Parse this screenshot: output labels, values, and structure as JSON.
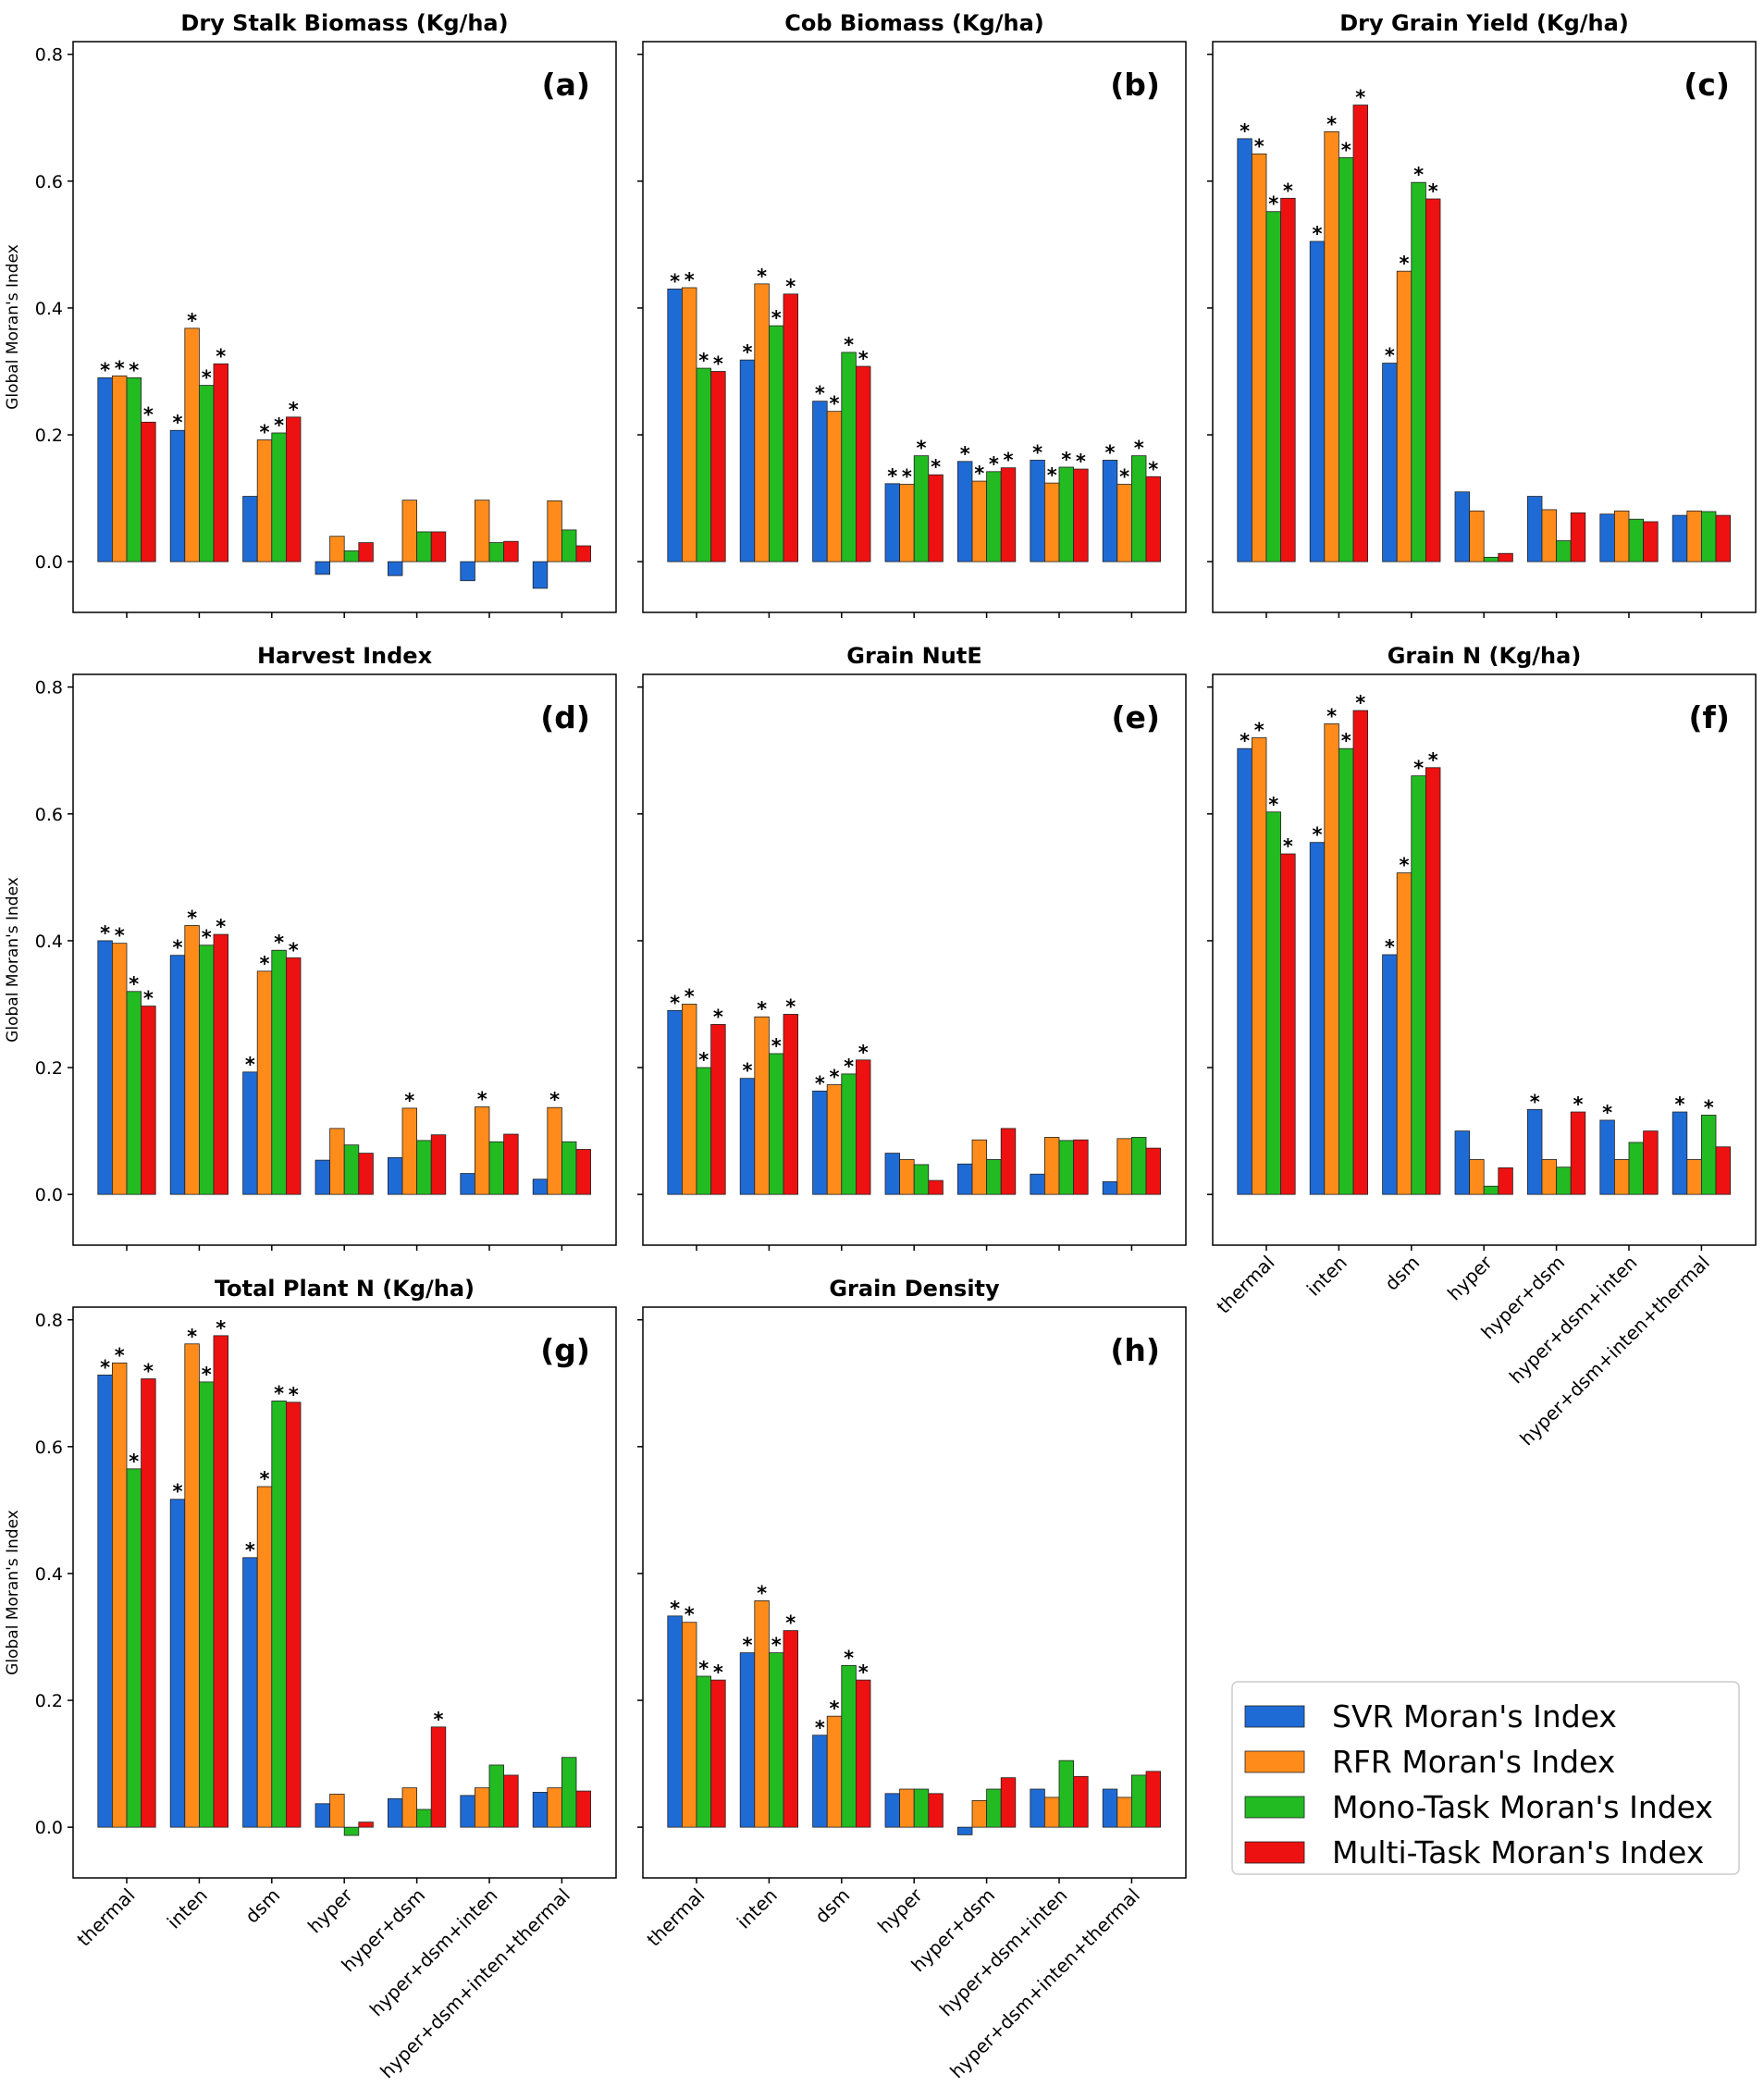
{
  "colors": {
    "SVR": "#1f6bd6",
    "RFR": "#ff8c1a",
    "Mono": "#22bb22",
    "Multi": "#ee1111"
  },
  "legend": [
    {
      "key": "SVR",
      "label": "SVR Moran's Index"
    },
    {
      "key": "RFR",
      "label": "RFR Moran's Index"
    },
    {
      "key": "Mono",
      "label": "Mono-Task Moran's Index"
    },
    {
      "key": "Multi",
      "label": "Multi-Task Moran's Index"
    }
  ],
  "chart_data": [
    {
      "type": "bar",
      "panel": "(a)",
      "title": "Dry Stalk Biomass (Kg/ha)",
      "ylabel": "Global Moran's Index",
      "ylim": [
        -0.08,
        0.82
      ],
      "yticks": [
        "0.0",
        "0.2",
        "0.4",
        "0.6",
        "0.8"
      ],
      "categories": [
        "thermal",
        "inten",
        "dsm",
        "hyper",
        "hyper+dsm",
        "hyper+dsm+inten",
        "hyper+dsm+inten+thermal"
      ],
      "series": [
        {
          "key": "SVR",
          "values": [
            0.29,
            0.207,
            0.103,
            -0.02,
            -0.022,
            -0.03,
            -0.042
          ],
          "sig": [
            1,
            1,
            0,
            0,
            0,
            0,
            0
          ]
        },
        {
          "key": "RFR",
          "values": [
            0.293,
            0.368,
            0.192,
            0.04,
            0.097,
            0.097,
            0.096
          ],
          "sig": [
            1,
            1,
            1,
            0,
            0,
            0,
            0
          ]
        },
        {
          "key": "Mono",
          "values": [
            0.29,
            0.278,
            0.203,
            0.017,
            0.047,
            0.03,
            0.05
          ],
          "sig": [
            1,
            1,
            1,
            0,
            0,
            0,
            0
          ]
        },
        {
          "key": "Multi",
          "values": [
            0.22,
            0.312,
            0.228,
            0.03,
            0.047,
            0.032,
            0.025
          ],
          "sig": [
            1,
            1,
            1,
            0,
            0,
            0,
            0
          ]
        }
      ]
    },
    {
      "type": "bar",
      "panel": "(b)",
      "title": "Cob Biomass (Kg/ha)",
      "ylabel": "",
      "ylim": [
        -0.08,
        0.82
      ],
      "yticks": [],
      "categories": [
        "thermal",
        "inten",
        "dsm",
        "hyper",
        "hyper+dsm",
        "hyper+dsm+inten",
        "hyper+dsm+inten+thermal"
      ],
      "series": [
        {
          "key": "SVR",
          "values": [
            0.43,
            0.318,
            0.253,
            0.123,
            0.158,
            0.16,
            0.16
          ],
          "sig": [
            1,
            1,
            1,
            1,
            1,
            1,
            1
          ]
        },
        {
          "key": "RFR",
          "values": [
            0.432,
            0.438,
            0.237,
            0.122,
            0.127,
            0.124,
            0.122
          ],
          "sig": [
            1,
            1,
            1,
            1,
            1,
            1,
            1
          ]
        },
        {
          "key": "Mono",
          "values": [
            0.305,
            0.372,
            0.33,
            0.167,
            0.142,
            0.149,
            0.167
          ],
          "sig": [
            1,
            1,
            1,
            1,
            1,
            1,
            1
          ]
        },
        {
          "key": "Multi",
          "values": [
            0.3,
            0.422,
            0.308,
            0.137,
            0.148,
            0.146,
            0.134
          ],
          "sig": [
            1,
            1,
            1,
            1,
            1,
            1,
            1
          ]
        }
      ]
    },
    {
      "type": "bar",
      "panel": "(c)",
      "title": "Dry Grain Yield (Kg/ha)",
      "ylabel": "",
      "ylim": [
        -0.08,
        0.82
      ],
      "yticks": [],
      "categories": [
        "thermal",
        "inten",
        "dsm",
        "hyper",
        "hyper+dsm",
        "hyper+dsm+inten",
        "hyper+dsm+inten+thermal"
      ],
      "series": [
        {
          "key": "SVR",
          "values": [
            0.667,
            0.505,
            0.313,
            0.11,
            0.103,
            0.075,
            0.073
          ],
          "sig": [
            1,
            1,
            1,
            0,
            0,
            0,
            0
          ]
        },
        {
          "key": "RFR",
          "values": [
            0.643,
            0.678,
            0.458,
            0.08,
            0.082,
            0.08,
            0.08
          ],
          "sig": [
            1,
            1,
            1,
            0,
            0,
            0,
            0
          ]
        },
        {
          "key": "Mono",
          "values": [
            0.552,
            0.637,
            0.598,
            0.007,
            0.033,
            0.067,
            0.079
          ],
          "sig": [
            1,
            1,
            1,
            0,
            0,
            0,
            0
          ]
        },
        {
          "key": "Multi",
          "values": [
            0.573,
            0.72,
            0.572,
            0.013,
            0.077,
            0.063,
            0.073
          ],
          "sig": [
            1,
            1,
            1,
            0,
            0,
            0,
            0
          ]
        }
      ]
    },
    {
      "type": "bar",
      "panel": "(d)",
      "title": "Harvest Index",
      "ylabel": "Global Moran's Index",
      "ylim": [
        -0.08,
        0.82
      ],
      "yticks": [
        "0.0",
        "0.2",
        "0.4",
        "0.6",
        "0.8"
      ],
      "categories": [
        "thermal",
        "inten",
        "dsm",
        "hyper",
        "hyper+dsm",
        "hyper+dsm+inten",
        "hyper+dsm+inten+thermal"
      ],
      "series": [
        {
          "key": "SVR",
          "values": [
            0.4,
            0.377,
            0.193,
            0.054,
            0.058,
            0.033,
            0.024
          ],
          "sig": [
            1,
            1,
            1,
            0,
            0,
            0,
            0
          ]
        },
        {
          "key": "RFR",
          "values": [
            0.396,
            0.424,
            0.352,
            0.104,
            0.136,
            0.138,
            0.137
          ],
          "sig": [
            1,
            1,
            1,
            0,
            1,
            1,
            1
          ]
        },
        {
          "key": "Mono",
          "values": [
            0.32,
            0.393,
            0.385,
            0.078,
            0.085,
            0.083,
            0.083
          ],
          "sig": [
            1,
            1,
            1,
            0,
            0,
            0,
            0
          ]
        },
        {
          "key": "Multi",
          "values": [
            0.297,
            0.41,
            0.373,
            0.065,
            0.094,
            0.095,
            0.071
          ],
          "sig": [
            1,
            1,
            1,
            0,
            0,
            0,
            0
          ]
        }
      ]
    },
    {
      "type": "bar",
      "panel": "(e)",
      "title": "Grain NutE",
      "ylabel": "",
      "ylim": [
        -0.08,
        0.82
      ],
      "yticks": [],
      "categories": [
        "thermal",
        "inten",
        "dsm",
        "hyper",
        "hyper+dsm",
        "hyper+dsm+inten",
        "hyper+dsm+inten+thermal"
      ],
      "series": [
        {
          "key": "SVR",
          "values": [
            0.29,
            0.183,
            0.163,
            0.065,
            0.048,
            0.032,
            0.02
          ],
          "sig": [
            1,
            1,
            1,
            0,
            0,
            0,
            0
          ]
        },
        {
          "key": "RFR",
          "values": [
            0.3,
            0.28,
            0.173,
            0.055,
            0.086,
            0.09,
            0.088
          ],
          "sig": [
            1,
            1,
            1,
            0,
            0,
            0,
            0
          ]
        },
        {
          "key": "Mono",
          "values": [
            0.2,
            0.222,
            0.19,
            0.047,
            0.055,
            0.085,
            0.09
          ],
          "sig": [
            1,
            1,
            1,
            0,
            0,
            0,
            0
          ]
        },
        {
          "key": "Multi",
          "values": [
            0.268,
            0.284,
            0.212,
            0.022,
            0.104,
            0.086,
            0.073
          ],
          "sig": [
            1,
            1,
            1,
            0,
            0,
            0,
            0
          ]
        }
      ]
    },
    {
      "type": "bar",
      "panel": "(f)",
      "title": "Grain N (Kg/ha)",
      "ylabel": "",
      "ylim": [
        -0.08,
        0.82
      ],
      "yticks": [],
      "categories": [
        "thermal",
        "inten",
        "dsm",
        "hyper",
        "hyper+dsm",
        "hyper+dsm+inten",
        "hyper+dsm+inten+thermal"
      ],
      "series": [
        {
          "key": "SVR",
          "values": [
            0.703,
            0.555,
            0.378,
            0.1,
            0.134,
            0.117,
            0.13
          ],
          "sig": [
            1,
            1,
            1,
            0,
            1,
            1,
            1
          ]
        },
        {
          "key": "RFR",
          "values": [
            0.72,
            0.742,
            0.507,
            0.055,
            0.055,
            0.055,
            0.055
          ],
          "sig": [
            1,
            1,
            1,
            0,
            0,
            0,
            0
          ]
        },
        {
          "key": "Mono",
          "values": [
            0.603,
            0.703,
            0.66,
            0.013,
            0.043,
            0.082,
            0.125
          ],
          "sig": [
            1,
            1,
            1,
            0,
            0,
            0,
            1
          ]
        },
        {
          "key": "Multi",
          "values": [
            0.537,
            0.763,
            0.673,
            0.042,
            0.13,
            0.1,
            0.075
          ],
          "sig": [
            1,
            1,
            1,
            0,
            1,
            0,
            0
          ]
        }
      ]
    },
    {
      "type": "bar",
      "panel": "(g)",
      "title": "Total Plant N (Kg/ha)",
      "ylabel": "Global Moran's Index",
      "ylim": [
        -0.08,
        0.82
      ],
      "yticks": [
        "0.0",
        "0.2",
        "0.4",
        "0.6",
        "0.8"
      ],
      "categories": [
        "thermal",
        "inten",
        "dsm",
        "hyper",
        "hyper+dsm",
        "hyper+dsm+inten",
        "hyper+dsm+inten+thermal"
      ],
      "series": [
        {
          "key": "SVR",
          "values": [
            0.713,
            0.517,
            0.425,
            0.037,
            0.045,
            0.05,
            0.055
          ],
          "sig": [
            1,
            1,
            1,
            0,
            0,
            0,
            0
          ]
        },
        {
          "key": "RFR",
          "values": [
            0.732,
            0.762,
            0.537,
            0.052,
            0.062,
            0.062,
            0.062
          ],
          "sig": [
            1,
            1,
            1,
            0,
            0,
            0,
            0
          ]
        },
        {
          "key": "Mono",
          "values": [
            0.565,
            0.702,
            0.672,
            -0.013,
            0.028,
            0.098,
            0.11
          ],
          "sig": [
            1,
            1,
            1,
            0,
            0,
            0,
            0
          ]
        },
        {
          "key": "Multi",
          "values": [
            0.707,
            0.775,
            0.67,
            0.008,
            0.158,
            0.082,
            0.057
          ],
          "sig": [
            1,
            1,
            1,
            0,
            1,
            0,
            0
          ]
        }
      ]
    },
    {
      "type": "bar",
      "panel": "(h)",
      "title": "Grain Density",
      "ylabel": "",
      "ylim": [
        -0.08,
        0.82
      ],
      "yticks": [],
      "categories": [
        "thermal",
        "inten",
        "dsm",
        "hyper",
        "hyper+dsm",
        "hyper+dsm+inten",
        "hyper+dsm+inten+thermal"
      ],
      "series": [
        {
          "key": "SVR",
          "values": [
            0.333,
            0.275,
            0.145,
            0.053,
            -0.012,
            0.06,
            0.06
          ],
          "sig": [
            1,
            1,
            1,
            0,
            0,
            0,
            0
          ]
        },
        {
          "key": "RFR",
          "values": [
            0.323,
            0.357,
            0.175,
            0.06,
            0.042,
            0.047,
            0.047
          ],
          "sig": [
            1,
            1,
            1,
            0,
            0,
            0,
            0
          ]
        },
        {
          "key": "Mono",
          "values": [
            0.238,
            0.275,
            0.255,
            0.06,
            0.06,
            0.105,
            0.082
          ],
          "sig": [
            1,
            1,
            1,
            0,
            0,
            0,
            0
          ]
        },
        {
          "key": "Multi",
          "values": [
            0.232,
            0.31,
            0.232,
            0.053,
            0.078,
            0.08,
            0.088
          ],
          "sig": [
            1,
            1,
            1,
            0,
            0,
            0,
            0
          ]
        }
      ]
    }
  ]
}
